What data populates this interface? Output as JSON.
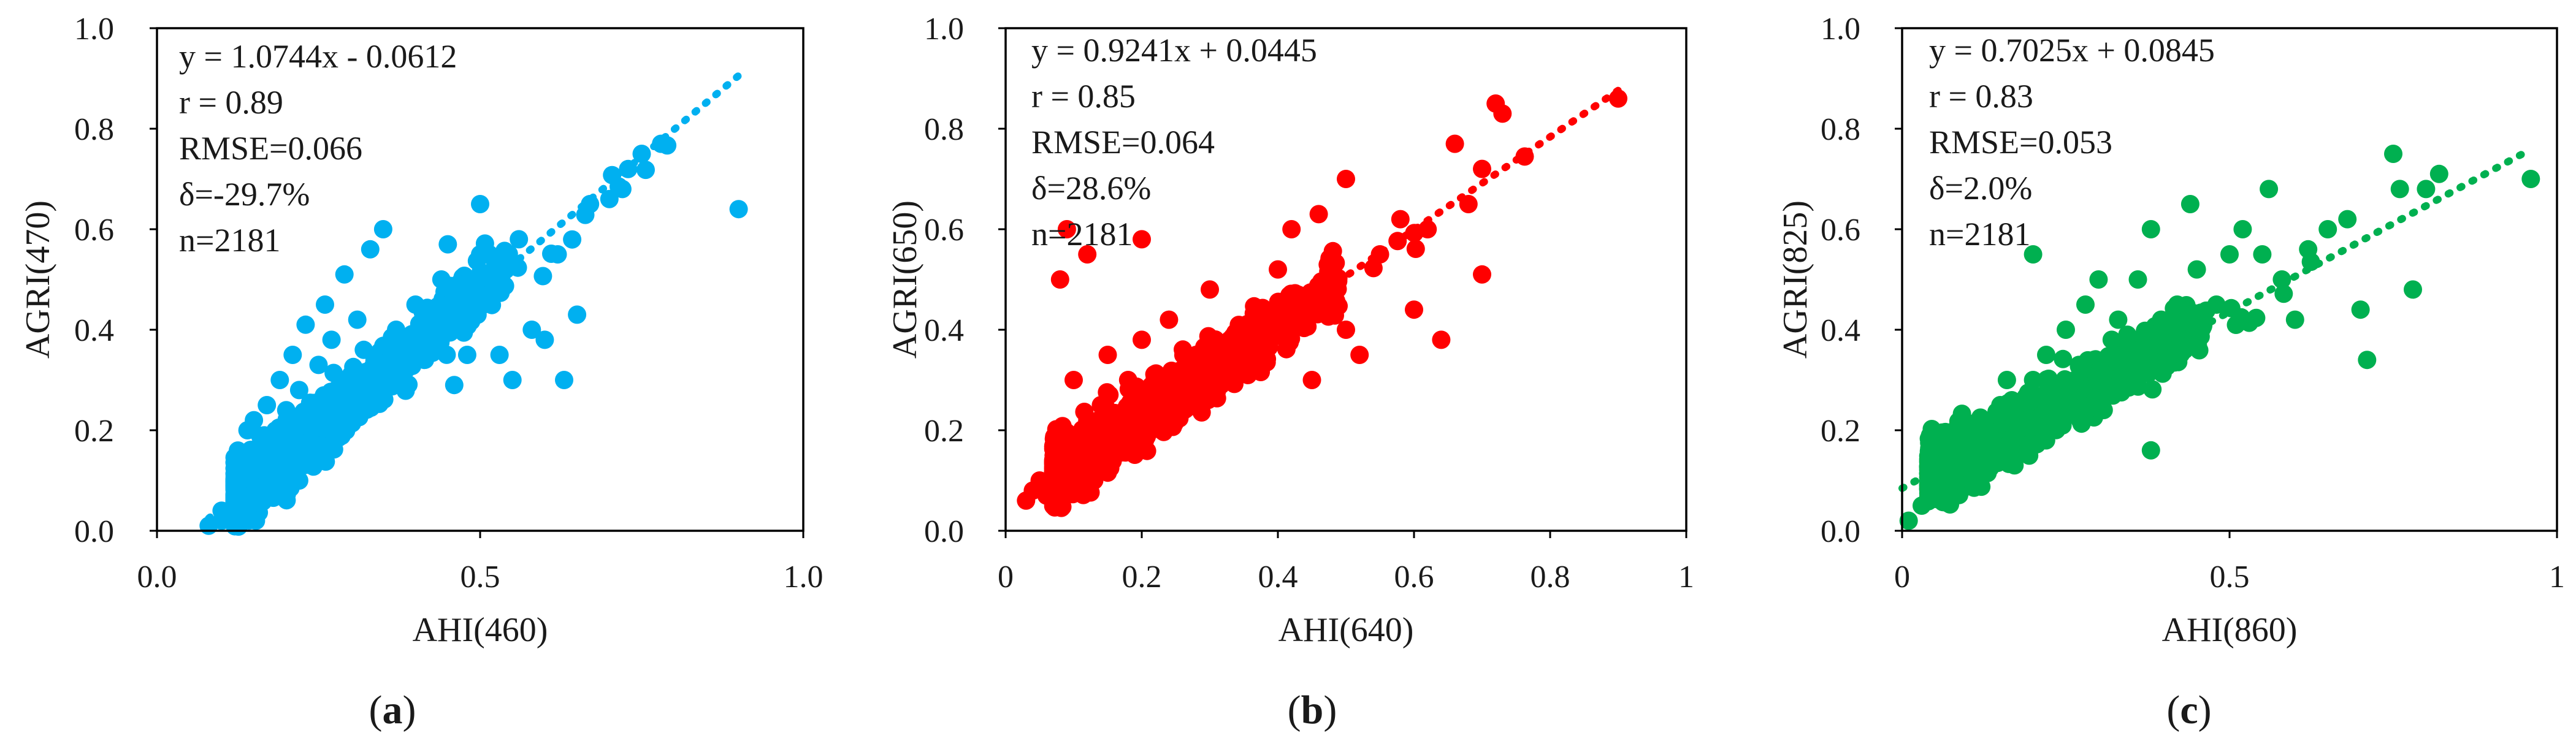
{
  "figure": {
    "panels": [
      {
        "id": "a",
        "caption_letter": "a",
        "color": "#00B0F0",
        "stats": [
          "y = 1.0744x - 0.0612",
          "r = 0.89",
          "RMSE=0.066",
          "δ=-29.7%",
          "n=2181"
        ]
      },
      {
        "id": "b",
        "caption_letter": "b",
        "color": "#FF0000",
        "stats": [
          "y = 0.9241x + 0.0445",
          "r = 0.85",
          "RMSE=0.064",
          "δ=28.6%",
          "n=2181"
        ]
      },
      {
        "id": "c",
        "caption_letter": "c",
        "color": "#00B050",
        "stats": [
          "y = 0.7025x + 0.0845",
          "r = 0.83",
          "RMSE=0.053",
          "δ=2.0%",
          "n=2181"
        ]
      }
    ]
  },
  "chart_data": [
    {
      "type": "scatter",
      "title": "",
      "xlabel": "AHI(460)",
      "ylabel": "AGRI(470)",
      "xlim": [
        0.0,
        1.0
      ],
      "ylim": [
        0.0,
        1.0
      ],
      "xticks": [
        0.0,
        0.5,
        1.0
      ],
      "xtick_labels": [
        "0.0",
        "0.5",
        "1.0"
      ],
      "yticks": [
        0.0,
        0.2,
        0.4,
        0.6,
        0.8,
        1.0
      ],
      "ytick_labels": [
        "0.0",
        "0.2",
        "0.4",
        "0.6",
        "0.8",
        "1.0"
      ],
      "n_points": 2181,
      "trendline": {
        "slope": 1.0744,
        "intercept": -0.0612,
        "x_range": [
          0.08,
          0.9
        ],
        "style": "dotted"
      },
      "stats": {
        "equation": "y = 1.0744x - 0.0612",
        "r": 0.89,
        "RMSE": 0.066,
        "delta_percent": -29.7,
        "n": 2181
      },
      "points_sample": [
        [
          0.08,
          0.01
        ],
        [
          0.1,
          0.02
        ],
        [
          0.1,
          0.04
        ],
        [
          0.12,
          0.06
        ],
        [
          0.12,
          0.1
        ],
        [
          0.13,
          0.15
        ],
        [
          0.14,
          0.2
        ],
        [
          0.15,
          0.12
        ],
        [
          0.15,
          0.22
        ],
        [
          0.16,
          0.08
        ],
        [
          0.17,
          0.25
        ],
        [
          0.18,
          0.18
        ],
        [
          0.19,
          0.3
        ],
        [
          0.2,
          0.14
        ],
        [
          0.2,
          0.24
        ],
        [
          0.21,
          0.35
        ],
        [
          0.22,
          0.28
        ],
        [
          0.22,
          0.1
        ],
        [
          0.23,
          0.41
        ],
        [
          0.24,
          0.2
        ],
        [
          0.25,
          0.33
        ],
        [
          0.26,
          0.45
        ],
        [
          0.27,
          0.38
        ],
        [
          0.28,
          0.25
        ],
        [
          0.29,
          0.51
        ],
        [
          0.3,
          0.31
        ],
        [
          0.31,
          0.42
        ],
        [
          0.32,
          0.36
        ],
        [
          0.33,
          0.56
        ],
        [
          0.35,
          0.6
        ],
        [
          0.36,
          0.3
        ],
        [
          0.37,
          0.4
        ],
        [
          0.38,
          0.33
        ],
        [
          0.4,
          0.45
        ],
        [
          0.42,
          0.38
        ],
        [
          0.44,
          0.5
        ],
        [
          0.45,
          0.57
        ],
        [
          0.46,
          0.29
        ],
        [
          0.48,
          0.35
        ],
        [
          0.5,
          0.65
        ],
        [
          0.5,
          0.55
        ],
        [
          0.52,
          0.48
        ],
        [
          0.53,
          0.35
        ],
        [
          0.55,
          0.3
        ],
        [
          0.56,
          0.58
        ],
        [
          0.58,
          0.4
        ],
        [
          0.6,
          0.38
        ],
        [
          0.62,
          0.55
        ],
        [
          0.63,
          0.3
        ],
        [
          0.65,
          0.43
        ],
        [
          0.67,
          0.65
        ],
        [
          0.7,
          0.66
        ],
        [
          0.72,
          0.68
        ],
        [
          0.75,
          0.75
        ],
        [
          0.78,
          0.77
        ],
        [
          0.9,
          0.64
        ]
      ]
    },
    {
      "type": "scatter",
      "title": "",
      "xlabel": "AHI(640)",
      "ylabel": "AGRI(650)",
      "xlim": [
        0.0,
        1.0
      ],
      "ylim": [
        0.0,
        1.0
      ],
      "xticks": [
        0.0,
        0.2,
        0.4,
        0.6,
        0.8,
        1.0
      ],
      "xtick_labels": [
        "0",
        "0.2",
        "0.4",
        "0.6",
        "0.8",
        "1"
      ],
      "yticks": [
        0.0,
        0.2,
        0.4,
        0.6,
        0.8,
        1.0
      ],
      "ytick_labels": [
        "0.0",
        "0.2",
        "0.4",
        "0.6",
        "0.8",
        "1.0"
      ],
      "n_points": 2181,
      "trendline": {
        "slope": 0.9241,
        "intercept": 0.0445,
        "x_range": [
          0.03,
          0.9
        ],
        "style": "dotted"
      },
      "stats": {
        "equation": "y = 0.9241x + 0.0445",
        "r": 0.85,
        "RMSE": 0.064,
        "delta_percent": 28.6,
        "n": 2181
      },
      "points_sample": [
        [
          0.03,
          0.06
        ],
        [
          0.04,
          0.08
        ],
        [
          0.05,
          0.1
        ],
        [
          0.06,
          0.07
        ],
        [
          0.07,
          0.14
        ],
        [
          0.08,
          0.12
        ],
        [
          0.08,
          0.5
        ],
        [
          0.09,
          0.6
        ],
        [
          0.1,
          0.18
        ],
        [
          0.1,
          0.3
        ],
        [
          0.12,
          0.22
        ],
        [
          0.12,
          0.55
        ],
        [
          0.14,
          0.25
        ],
        [
          0.15,
          0.35
        ],
        [
          0.16,
          0.2
        ],
        [
          0.18,
          0.3
        ],
        [
          0.2,
          0.38
        ],
        [
          0.2,
          0.58
        ],
        [
          0.22,
          0.28
        ],
        [
          0.24,
          0.42
        ],
        [
          0.25,
          0.22
        ],
        [
          0.28,
          0.35
        ],
        [
          0.3,
          0.48
        ],
        [
          0.32,
          0.3
        ],
        [
          0.35,
          0.4
        ],
        [
          0.38,
          0.35
        ],
        [
          0.4,
          0.52
        ],
        [
          0.42,
          0.6
        ],
        [
          0.44,
          0.45
        ],
        [
          0.45,
          0.3
        ],
        [
          0.46,
          0.63
        ],
        [
          0.48,
          0.5
        ],
        [
          0.5,
          0.7
        ],
        [
          0.5,
          0.4
        ],
        [
          0.52,
          0.35
        ],
        [
          0.55,
          0.55
        ],
        [
          0.58,
          0.62
        ],
        [
          0.6,
          0.44
        ],
        [
          0.62,
          0.6
        ],
        [
          0.64,
          0.38
        ],
        [
          0.66,
          0.77
        ],
        [
          0.68,
          0.65
        ],
        [
          0.7,
          0.72
        ],
        [
          0.7,
          0.51
        ],
        [
          0.72,
          0.85
        ],
        [
          0.73,
          0.83
        ],
        [
          0.9,
          0.86
        ]
      ]
    },
    {
      "type": "scatter",
      "title": "",
      "xlabel": "AHI(860)",
      "ylabel": "AGRI(825)",
      "xlim": [
        0.0,
        1.0
      ],
      "ylim": [
        0.0,
        1.0
      ],
      "xticks": [
        0.0,
        0.5,
        1.0
      ],
      "xtick_labels": [
        "0",
        "0.5",
        "1"
      ],
      "yticks": [
        0.0,
        0.2,
        0.4,
        0.6,
        0.8,
        1.0
      ],
      "ytick_labels": [
        "0.0",
        "0.2",
        "0.4",
        "0.6",
        "0.8",
        "1.0"
      ],
      "n_points": 2181,
      "trendline": {
        "slope": 0.7025,
        "intercept": 0.0845,
        "x_range": [
          0.0,
          0.95
        ],
        "style": "dotted"
      },
      "stats": {
        "equation": "y = 0.7025x + 0.0845",
        "r": 0.83,
        "RMSE": 0.053,
        "delta_percent": 2.0,
        "n": 2181
      },
      "points_sample": [
        [
          0.01,
          0.02
        ],
        [
          0.03,
          0.05
        ],
        [
          0.05,
          0.08
        ],
        [
          0.06,
          0.12
        ],
        [
          0.08,
          0.1
        ],
        [
          0.1,
          0.15
        ],
        [
          0.12,
          0.2
        ],
        [
          0.14,
          0.18
        ],
        [
          0.15,
          0.25
        ],
        [
          0.16,
          0.3
        ],
        [
          0.18,
          0.22
        ],
        [
          0.2,
          0.3
        ],
        [
          0.2,
          0.55
        ],
        [
          0.22,
          0.35
        ],
        [
          0.24,
          0.28
        ],
        [
          0.25,
          0.4
        ],
        [
          0.27,
          0.33
        ],
        [
          0.28,
          0.45
        ],
        [
          0.3,
          0.3
        ],
        [
          0.3,
          0.5
        ],
        [
          0.32,
          0.38
        ],
        [
          0.33,
          0.42
        ],
        [
          0.35,
          0.32
        ],
        [
          0.36,
          0.5
        ],
        [
          0.38,
          0.6
        ],
        [
          0.38,
          0.16
        ],
        [
          0.4,
          0.38
        ],
        [
          0.42,
          0.45
        ],
        [
          0.44,
          0.65
        ],
        [
          0.45,
          0.52
        ],
        [
          0.48,
          0.45
        ],
        [
          0.5,
          0.55
        ],
        [
          0.52,
          0.6
        ],
        [
          0.55,
          0.55
        ],
        [
          0.56,
          0.68
        ],
        [
          0.58,
          0.5
        ],
        [
          0.6,
          0.42
        ],
        [
          0.62,
          0.56
        ],
        [
          0.65,
          0.6
        ],
        [
          0.68,
          0.62
        ],
        [
          0.7,
          0.44
        ],
        [
          0.71,
          0.34
        ],
        [
          0.75,
          0.75
        ],
        [
          0.76,
          0.68
        ],
        [
          0.78,
          0.48
        ],
        [
          0.8,
          0.68
        ],
        [
          0.82,
          0.71
        ],
        [
          0.96,
          0.7
        ]
      ]
    }
  ]
}
